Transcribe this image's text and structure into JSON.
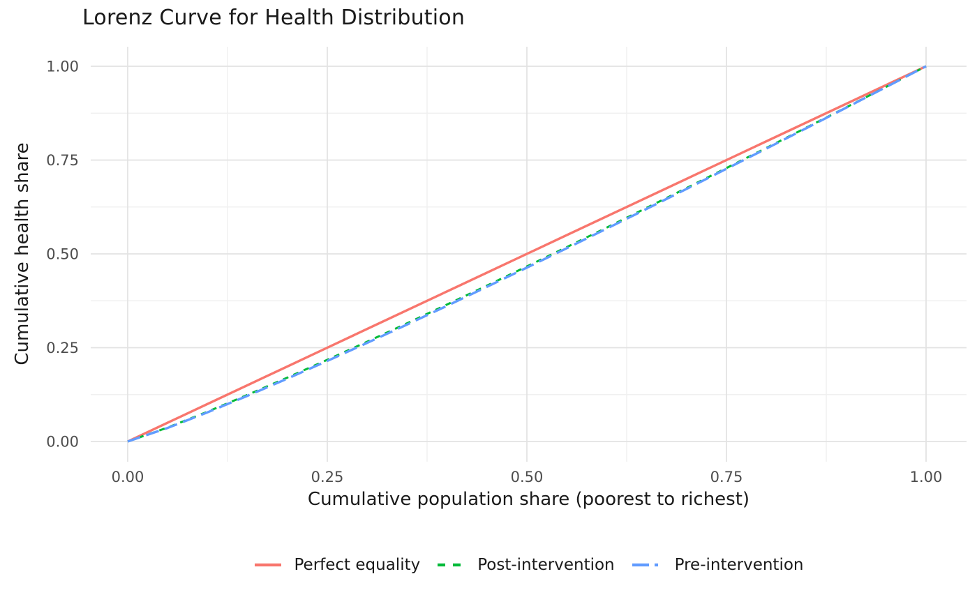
{
  "chart_data": {
    "type": "line",
    "title": "Lorenz Curve for Health Distribution",
    "xlabel": "Cumulative population share (poorest to richest)",
    "ylabel": "Cumulative health share",
    "xlim": [
      0,
      1
    ],
    "ylim": [
      0,
      1
    ],
    "grid": "major and minor gridlines, no tick marks (minimal theme)",
    "minor_grid_step": 0.125,
    "legend_position": "bottom",
    "x_ticks": {
      "values": [
        0,
        0.25,
        0.5,
        0.75,
        1
      ],
      "labels": [
        "0.00",
        "0.25",
        "0.50",
        "0.75",
        "1.00"
      ]
    },
    "y_ticks": {
      "values": [
        0,
        0.25,
        0.5,
        0.75,
        1
      ],
      "labels": [
        "0.00",
        "0.25",
        "0.50",
        "0.75",
        "1.00"
      ]
    },
    "x": [
      0,
      0.05,
      0.1,
      0.15,
      0.2,
      0.25,
      0.3,
      0.35,
      0.4,
      0.45,
      0.5,
      0.55,
      0.6,
      0.65,
      0.7,
      0.75,
      0.8,
      0.85,
      0.9,
      0.95,
      1
    ],
    "series": [
      {
        "name": "Perfect equality",
        "color": "#F8766D",
        "linetype": "solid",
        "width": 3.4,
        "dash": "",
        "legend_dash": "",
        "values": [
          0,
          0.05,
          0.1,
          0.15,
          0.2,
          0.25,
          0.3,
          0.35,
          0.4,
          0.45,
          0.5,
          0.55,
          0.6,
          0.65,
          0.7,
          0.75,
          0.8,
          0.85,
          0.9,
          0.95,
          1
        ]
      },
      {
        "name": "Post-intervention",
        "color": "#00BA38",
        "linetype": "dashed",
        "width": 3,
        "dash": "8 8",
        "legend_dash": "11 11",
        "values": [
          0,
          0.0371,
          0.0794,
          0.1241,
          0.1703,
          0.2176,
          0.266,
          0.3151,
          0.365,
          0.4154,
          0.4665,
          0.5181,
          0.5701,
          0.6226,
          0.6754,
          0.7288,
          0.7824,
          0.8364,
          0.8906,
          0.9451,
          1
        ]
      },
      {
        "name": "Pre-intervention",
        "color": "#619CFF",
        "linetype": "longdash",
        "width": 3.4,
        "dash": "19 9",
        "legend_dash": "24 8 5 100",
        "values": [
          0,
          0.036,
          0.0777,
          0.1217,
          0.1675,
          0.2146,
          0.2628,
          0.3118,
          0.3616,
          0.4122,
          0.4633,
          0.5151,
          0.5673,
          0.6199,
          0.6731,
          0.7267,
          0.7806,
          0.8349,
          0.8896,
          0.9447,
          1
        ]
      }
    ],
    "colors": {
      "background": "#FFFFFF",
      "grid_major": "#E3E3E3",
      "grid_minor": "#F0F0F0",
      "tick_text": "#4D4D4D",
      "title_text": "#1A1A1A"
    }
  }
}
